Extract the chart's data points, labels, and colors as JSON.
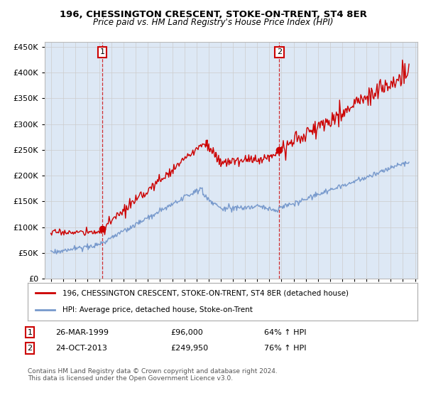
{
  "title": "196, CHESSINGTON CRESCENT, STOKE-ON-TRENT, ST4 8ER",
  "subtitle": "Price paid vs. HM Land Registry's House Price Index (HPI)",
  "legend_line1": "196, CHESSINGTON CRESCENT, STOKE-ON-TRENT, ST4 8ER (detached house)",
  "legend_line2": "HPI: Average price, detached house, Stoke-on-Trent",
  "annotation1_label": "1",
  "annotation1_date": "26-MAR-1999",
  "annotation1_price": "£96,000",
  "annotation1_hpi": "64% ↑ HPI",
  "annotation1_year": 1999.23,
  "annotation1_value": 96000,
  "annotation2_label": "2",
  "annotation2_date": "24-OCT-2013",
  "annotation2_price": "£249,950",
  "annotation2_hpi": "76% ↑ HPI",
  "annotation2_year": 2013.81,
  "annotation2_value": 249950,
  "footer": "Contains HM Land Registry data © Crown copyright and database right 2024.\nThis data is licensed under the Open Government Licence v3.0.",
  "red_color": "#cc0000",
  "blue_color": "#7799cc",
  "blue_fill": "#dde8f5",
  "background_color": "#ffffff",
  "grid_color": "#cccccc",
  "ylim": [
    0,
    460000
  ],
  "xlim_start": 1994.5,
  "xlim_end": 2025.2
}
